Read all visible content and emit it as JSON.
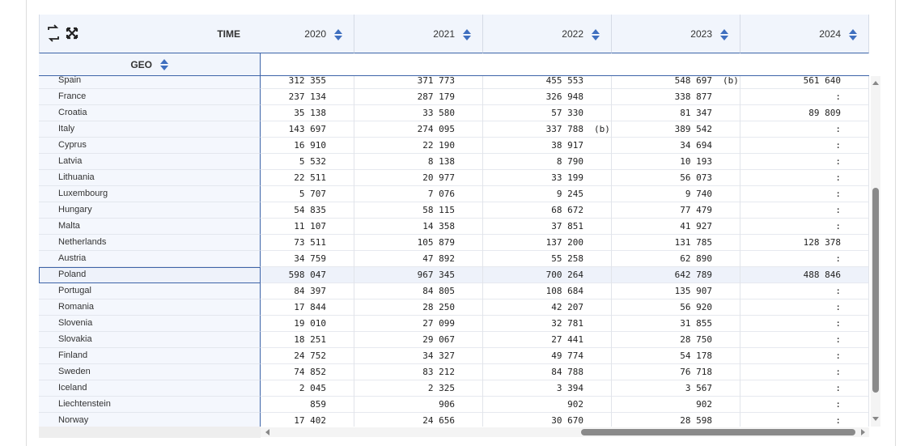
{
  "header": {
    "time_label": "TIME",
    "geo_label": "GEO",
    "years": [
      "2020",
      "2021",
      "2022",
      "2023",
      "2024"
    ]
  },
  "table": {
    "rows": [
      {
        "geo": "Spain",
        "cells": [
          "312 355",
          "371 773",
          "455 553",
          {
            "value": "548 697",
            "flag": "(b)"
          },
          "561 640"
        ]
      },
      {
        "geo": "France",
        "cells": [
          "237 134",
          "287 179",
          "326 948",
          "338 877",
          ":"
        ]
      },
      {
        "geo": "Croatia",
        "cells": [
          "35 138",
          "33 580",
          "57 330",
          "81 347",
          "89 809"
        ]
      },
      {
        "geo": "Italy",
        "cells": [
          "143 697",
          "274 095",
          {
            "value": "337 788",
            "flag": "(b)"
          },
          "389 542",
          ":"
        ]
      },
      {
        "geo": "Cyprus",
        "cells": [
          "16 910",
          "22 190",
          "38 917",
          "34 694",
          ":"
        ]
      },
      {
        "geo": "Latvia",
        "cells": [
          "5 532",
          "8 138",
          "8 790",
          "10 193",
          ":"
        ]
      },
      {
        "geo": "Lithuania",
        "cells": [
          "22 511",
          "20 977",
          "33 199",
          "56 073",
          ":"
        ]
      },
      {
        "geo": "Luxembourg",
        "cells": [
          "5 707",
          "7 076",
          "9 245",
          "9 740",
          ":"
        ]
      },
      {
        "geo": "Hungary",
        "cells": [
          "54 835",
          "58 115",
          "68 672",
          "77 479",
          ":"
        ]
      },
      {
        "geo": "Malta",
        "cells": [
          "11 107",
          "14 358",
          "37 851",
          "41 927",
          ":"
        ]
      },
      {
        "geo": "Netherlands",
        "cells": [
          "73 511",
          "105 879",
          "137 200",
          "131 785",
          "128 378"
        ]
      },
      {
        "geo": "Austria",
        "cells": [
          "34 759",
          "47 892",
          "55 258",
          "62 890",
          ":"
        ]
      },
      {
        "geo": "Poland",
        "cells": [
          "598 047",
          "967 345",
          "700 264",
          "642 789",
          "488 846"
        ]
      },
      {
        "geo": "Portugal",
        "cells": [
          "84 397",
          "84 805",
          "108 684",
          "135 907",
          ":"
        ]
      },
      {
        "geo": "Romania",
        "cells": [
          "17 844",
          "28 250",
          "42 207",
          "56 920",
          ":"
        ]
      },
      {
        "geo": "Slovenia",
        "cells": [
          "19 010",
          "27 099",
          "32 781",
          "31 855",
          ":"
        ]
      },
      {
        "geo": "Slovakia",
        "cells": [
          "18 251",
          "29 067",
          "27 441",
          "28 750",
          ":"
        ]
      },
      {
        "geo": "Finland",
        "cells": [
          "24 752",
          "34 327",
          "49 774",
          "54 178",
          ":"
        ]
      },
      {
        "geo": "Sweden",
        "cells": [
          "74 852",
          "83 212",
          "84 788",
          "76 718",
          ":"
        ]
      },
      {
        "geo": "Iceland",
        "cells": [
          "2 045",
          "2 325",
          "3 394",
          "3 567",
          ":"
        ]
      },
      {
        "geo": "Liechtenstein",
        "cells": [
          "859",
          "906",
          "902",
          "902",
          ":"
        ]
      },
      {
        "geo": "Norway",
        "cells": [
          "17 402",
          "24 656",
          "30 670",
          "28 598",
          ":"
        ]
      }
    ]
  }
}
